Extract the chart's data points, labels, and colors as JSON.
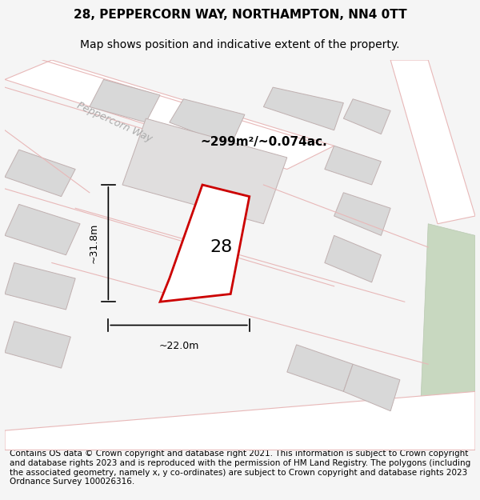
{
  "title_line1": "28, PEPPERCORN WAY, NORTHAMPTON, NN4 0TT",
  "title_line2": "Map shows position and indicative extent of the property.",
  "area_label": "~299m²/~0.074ac.",
  "width_label": "~22.0m",
  "height_label": "~31.8m",
  "number_label": "28",
  "footer_text": "Contains OS data © Crown copyright and database right 2021. This information is subject to Crown copyright and database rights 2023 and is reproduced with the permission of HM Land Registry. The polygons (including the associated geometry, namely x, y co-ordinates) are subject to Crown copyright and database rights 2023 Ordnance Survey 100026316.",
  "bg_color": "#f5f5f5",
  "map_bg": "#f0eeee",
  "road_color": "#e8c8c8",
  "road_fill": "#ffffff",
  "building_fill": "#d8d8d8",
  "building_edge": "#c8b8b8",
  "highlight_color": "#cc0000",
  "green_fill": "#c8d8c0",
  "street_label": "Peppercorn Way",
  "title_fontsize": 11,
  "subtitle_fontsize": 10,
  "footer_fontsize": 7.5
}
